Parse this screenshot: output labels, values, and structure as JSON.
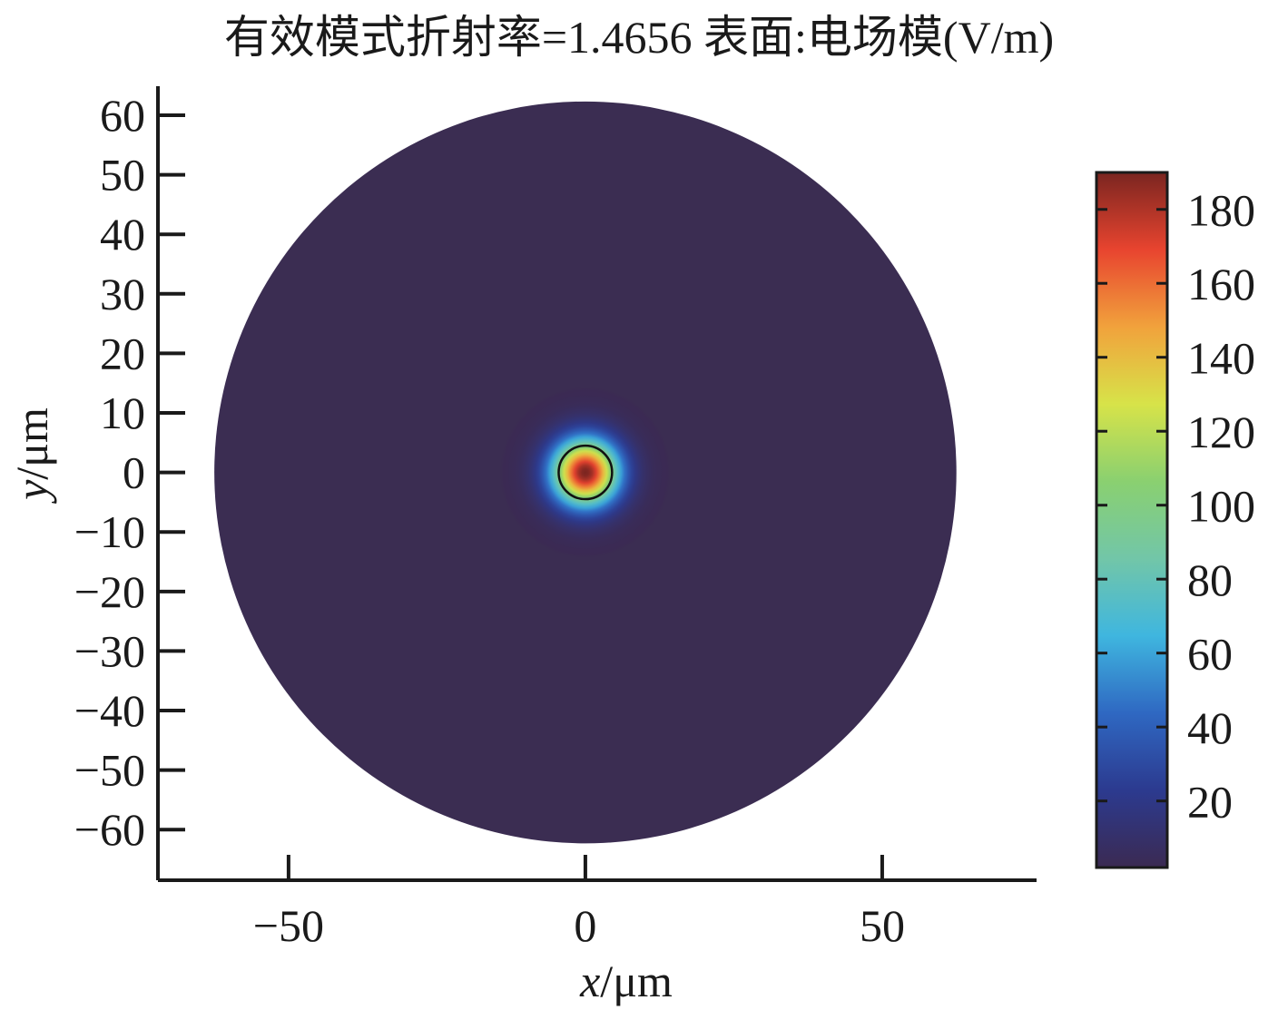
{
  "chart_data": {
    "type": "heatmap",
    "title": "有效模式折射率=1.4656 表面:电场模(V/m)",
    "xlabel_var": "x",
    "xlabel_unit": "/μm",
    "ylabel_var": "y",
    "ylabel_unit": "/μm",
    "xlim": [
      -72,
      76
    ],
    "ylim": [
      -68.5,
      60.0
    ],
    "x_ticks": [
      -50,
      0,
      50
    ],
    "x_tick_labels": [
      "−50",
      "0",
      "50"
    ],
    "y_ticks": [
      60,
      50,
      40,
      30,
      20,
      10,
      0,
      -10,
      -20,
      -30,
      -40,
      -50,
      -60
    ],
    "y_tick_labels": [
      "60",
      "50",
      "40",
      "30",
      "20",
      "10",
      "0",
      "−10",
      "−20",
      "−30",
      "−40",
      "−50",
      "−60"
    ],
    "cladding_radius": 62.5,
    "core_radius": 4.5,
    "field_peak": 190,
    "field_background": 2,
    "field_decay_radius": 5.5,
    "colorbar": {
      "range": [
        2,
        190
      ],
      "ticks": [
        20,
        40,
        60,
        80,
        100,
        120,
        140,
        160,
        180
      ],
      "tick_labels": [
        "20",
        "40",
        "60",
        "80",
        "100",
        "120",
        "140",
        "160",
        "180"
      ],
      "colormap": [
        "#3b2a52",
        "#2c3a8f",
        "#2f68c2",
        "#3fb6df",
        "#72c6a8",
        "#8ad070",
        "#d7e349",
        "#f1a23c",
        "#e8442f",
        "#7a2520"
      ]
    },
    "grid": false,
    "legend": "none"
  }
}
